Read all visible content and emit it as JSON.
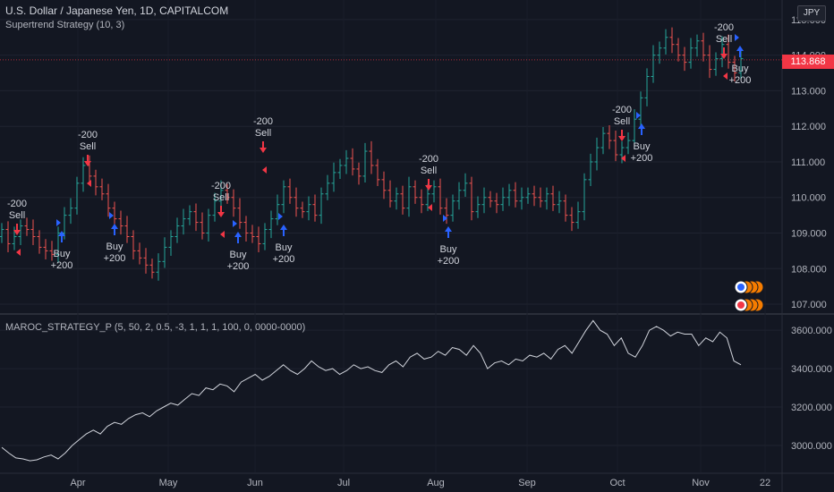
{
  "header": {
    "symbol_title": "U.S. Dollar / Japanese Yen, 1D, CAPITALCOM",
    "strategy_label": "Supertrend Strategy (10, 3)",
    "currency": "JPY",
    "last_price": "113.868"
  },
  "indicator": {
    "label": "MAROC_STRATEGY_P (5, 50, 2, 0.5, -3, 1, 1, 1, 100, 0, 0000-0000)"
  },
  "colors": {
    "background": "#131722",
    "up": "#26a69a",
    "down": "#ef5350",
    "buy": "#2962ff",
    "sell": "#f23645",
    "line": "#d1d4dc"
  },
  "chart_data": [
    {
      "type": "candlestick",
      "x_ticks": [
        "Apr",
        "May",
        "Jun",
        "Jul",
        "Aug",
        "Sep",
        "Oct",
        "Nov",
        "22"
      ],
      "y_ticks": [
        "115.000",
        "114.000",
        "113.000",
        "112.000",
        "111.000",
        "110.000",
        "109.000",
        "108.000",
        "107.000"
      ],
      "ylim": [
        106.75,
        115.55
      ],
      "last_price": 113.868,
      "close_series": [
        109.1,
        108.7,
        108.9,
        109.2,
        109.1,
        108.9,
        108.6,
        108.5,
        108.4,
        109.0,
        109.5,
        109.7,
        110.4,
        110.9,
        110.6,
        110.3,
        110.1,
        109.7,
        109.4,
        109.2,
        108.9,
        108.5,
        108.3,
        108.1,
        107.9,
        108.2,
        108.6,
        108.9,
        109.2,
        109.4,
        109.6,
        109.3,
        109.0,
        109.5,
        109.9,
        110.2,
        110.0,
        109.7,
        109.3,
        109.0,
        108.9,
        108.7,
        109.1,
        109.4,
        109.8,
        110.3,
        110.0,
        109.7,
        109.6,
        109.8,
        109.5,
        110.1,
        110.4,
        110.7,
        110.9,
        111.1,
        110.8,
        110.6,
        111.3,
        110.9,
        110.5,
        110.2,
        109.9,
        110.1,
        109.7,
        110.3,
        110.0,
        109.8,
        110.1,
        110.3,
        109.7,
        109.5,
        109.9,
        110.2,
        110.4,
        109.6,
        109.8,
        110.0,
        109.9,
        109.8,
        110.0,
        110.2,
        109.9,
        110.0,
        110.1,
        110.0,
        109.9,
        110.1,
        109.8,
        109.9,
        109.5,
        109.3,
        109.6,
        110.5,
        111.0,
        111.4,
        111.8,
        111.6,
        111.2,
        111.4,
        111.6,
        112.2,
        112.8,
        113.4,
        114.0,
        114.2,
        114.5,
        114.3,
        114.0,
        113.8,
        114.2,
        114.4,
        114.0,
        113.6,
        113.9,
        114.3,
        113.8,
        113.5,
        113.9
      ],
      "annotations": [
        {
          "kind": "sell",
          "qty": "-200",
          "label": "Sell"
        },
        {
          "kind": "buy",
          "qty": "+200",
          "label": "Buy"
        },
        {
          "kind": "sell",
          "qty": "-200",
          "label": "Sell"
        },
        {
          "kind": "buy",
          "qty": "+200",
          "label": "Buy"
        },
        {
          "kind": "sell",
          "qty": "-200",
          "label": "Sell"
        },
        {
          "kind": "buy",
          "qty": "+200",
          "label": "Buy"
        },
        {
          "kind": "sell",
          "qty": "-200",
          "label": "Sell"
        },
        {
          "kind": "buy",
          "qty": "+200",
          "label": "Buy"
        },
        {
          "kind": "sell",
          "qty": "-200",
          "label": "Sell"
        },
        {
          "kind": "buy",
          "qty": "+200",
          "label": "Buy"
        },
        {
          "kind": "sell",
          "qty": "-200",
          "label": "Sell"
        },
        {
          "kind": "buy",
          "qty": "+200",
          "label": "Buy"
        },
        {
          "kind": "sell",
          "qty": "-200",
          "label": "Sell"
        },
        {
          "kind": "buy",
          "qty": "+200",
          "label": "Buy"
        }
      ]
    },
    {
      "type": "line",
      "y_ticks": [
        "3600.000",
        "3400.000",
        "3200.000",
        "3000.000"
      ],
      "ylim": [
        2860,
        3680
      ],
      "values": [
        2990,
        2960,
        2935,
        2930,
        2920,
        2925,
        2940,
        2950,
        2930,
        2960,
        3000,
        3030,
        3060,
        3080,
        3060,
        3100,
        3120,
        3110,
        3140,
        3160,
        3170,
        3150,
        3180,
        3200,
        3220,
        3210,
        3240,
        3270,
        3260,
        3300,
        3290,
        3320,
        3310,
        3280,
        3330,
        3350,
        3370,
        3340,
        3360,
        3390,
        3420,
        3390,
        3370,
        3400,
        3440,
        3410,
        3390,
        3400,
        3370,
        3390,
        3420,
        3400,
        3410,
        3390,
        3380,
        3420,
        3440,
        3410,
        3460,
        3480,
        3450,
        3460,
        3490,
        3470,
        3510,
        3500,
        3470,
        3520,
        3480,
        3400,
        3430,
        3440,
        3420,
        3450,
        3440,
        3470,
        3460,
        3480,
        3450,
        3500,
        3520,
        3480,
        3540,
        3600,
        3650,
        3600,
        3580,
        3520,
        3560,
        3480,
        3460,
        3520,
        3600,
        3620,
        3600,
        3570,
        3590,
        3580,
        3580,
        3520,
        3560,
        3540,
        3590,
        3560,
        3440,
        3420
      ]
    }
  ]
}
